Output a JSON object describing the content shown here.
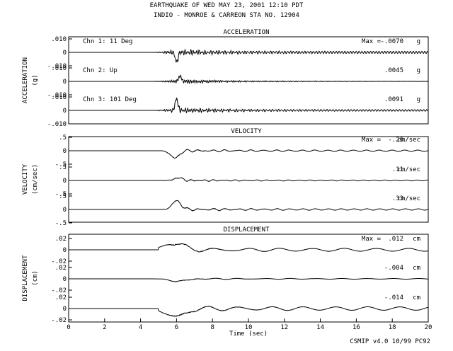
{
  "header": {
    "title": "EARTHQUAKE OF WED MAY 23, 2001  12:10 PDT",
    "station": "INDIO - MONROE & CARREON    STA NO. 12904"
  },
  "footer": {
    "credit": "CSMIP v4.0 10/99  PC92"
  },
  "chart_data": {
    "type": "line",
    "xlabel": "Time (sec)",
    "xlim": [
      0,
      20
    ],
    "x_ticks": [
      "0",
      "2",
      "4",
      "6",
      "8",
      "10",
      "12",
      "14",
      "16",
      "18",
      "20"
    ],
    "channels": [
      "Chn 1: 11 Deg",
      "Chn 2: Up",
      "Chn 3: 101 Deg"
    ],
    "panels": [
      {
        "key": "acc",
        "title": "ACCELERATION",
        "ylabel": "ACCELERATION",
        "unit_label": "(g)",
        "unit": "g",
        "ylim": [
          -0.01,
          0.01
        ],
        "y_ticks": [
          ".010",
          "0",
          "-.010"
        ],
        "max_prefix": "Max =",
        "traces": [
          {
            "channel": "Chn 1: 11 Deg",
            "max": "-.0070",
            "peak_time": 6.0,
            "peak": -0.007,
            "noise": 0.0012,
            "tail": 0.0008,
            "onset": 4.6,
            "freq": 9.0,
            "seed": 3
          },
          {
            "channel": "Chn 2: Up",
            "max": ".0045",
            "peak_time": 6.2,
            "peak": 0.0045,
            "noise": 0.001,
            "tail": 0.0002,
            "onset": 4.4,
            "freq": 9.5,
            "seed": 7
          },
          {
            "channel": "Chn 3: 101 Deg",
            "max": ".0091",
            "peak_time": 6.0,
            "peak": 0.0091,
            "noise": 0.0012,
            "tail": 0.0006,
            "onset": 4.6,
            "freq": 8.5,
            "seed": 11
          }
        ]
      },
      {
        "key": "vel",
        "title": "VELOCITY",
        "ylabel": "VELOCITY",
        "unit_label": "(cm/sec)",
        "unit": "cm/sec",
        "ylim": [
          -0.5,
          0.5
        ],
        "y_ticks": [
          ".5",
          "0",
          "-.5"
        ],
        "max_prefix": "Max =",
        "traces": [
          {
            "channel": "Chn 1: 11 Deg",
            "max": "-.26",
            "peak_time": 5.9,
            "peak": -0.26,
            "noise": 0.03,
            "tail": 0.025,
            "onset": 5.2,
            "freq": 2.0,
            "seed": 13
          },
          {
            "channel": "Chn 2: Up",
            "max": ".11",
            "peak_time": 6.1,
            "peak": 0.11,
            "noise": 0.025,
            "tail": 0.015,
            "onset": 5.0,
            "freq": 2.4,
            "seed": 17
          },
          {
            "channel": "Chn 3: 101 Deg",
            "max": ".33",
            "peak_time": 6.0,
            "peak": 0.33,
            "noise": 0.03,
            "tail": 0.025,
            "onset": 5.2,
            "freq": 2.0,
            "seed": 19
          }
        ]
      },
      {
        "key": "dis",
        "title": "DISPLACEMENT",
        "ylabel": "DISPLACEMENT",
        "unit_label": "(cm)",
        "unit": "cm",
        "ylim": [
          -0.02,
          0.02
        ],
        "y_ticks": [
          ".02",
          "0",
          "-.02"
        ],
        "max_prefix": "Max =",
        "traces": [
          {
            "channel": "Chn 1: 11 Deg",
            "max": ".012",
            "peak_time": 5.8,
            "peak": 0.012,
            "noise": 0.002,
            "tail": 0.0025,
            "onset": 5.0,
            "freq": 0.8,
            "seed": 23
          },
          {
            "channel": "Chn 2: Up",
            "max": "-.004",
            "peak_time": 6.1,
            "peak": -0.004,
            "noise": 0.001,
            "tail": 0.0006,
            "onset": 4.8,
            "freq": 1.0,
            "seed": 29
          },
          {
            "channel": "Chn 3: 101 Deg",
            "max": "-.014",
            "peak_time": 5.9,
            "peak": -0.014,
            "noise": 0.002,
            "tail": 0.003,
            "onset": 5.0,
            "freq": 0.8,
            "seed": 31
          }
        ]
      }
    ]
  }
}
